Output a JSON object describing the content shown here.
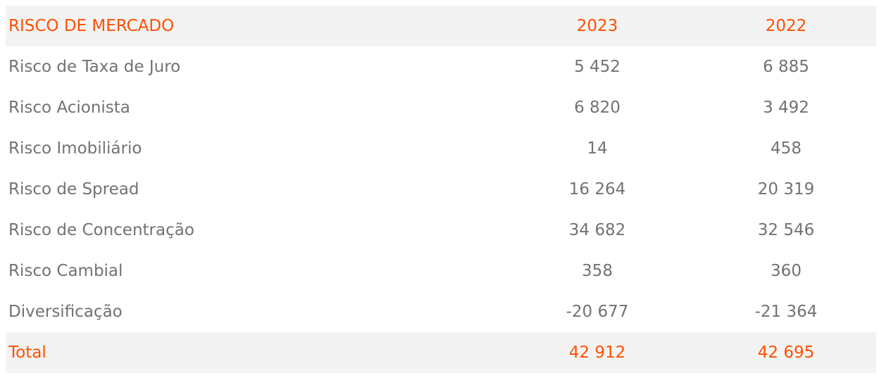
{
  "table": {
    "header": {
      "label": "RISCO DE MERCADO",
      "col1": "2023",
      "col2": "2022"
    },
    "rows": [
      {
        "label": "Risco de Taxa de Juro",
        "v2023": "5 452",
        "v2022": "6 885"
      },
      {
        "label": "Risco Acionista",
        "v2023": "6 820",
        "v2022": "3 492"
      },
      {
        "label": "Risco Imobiliário",
        "v2023": "14",
        "v2022": "458"
      },
      {
        "label": "Risco de Spread",
        "v2023": "16 264",
        "v2022": "20 319"
      },
      {
        "label": "Risco de Concentração",
        "v2023": "34 682",
        "v2022": "32 546"
      },
      {
        "label": "Risco Cambial",
        "v2023": "358",
        "v2022": "360"
      },
      {
        "label": "Diversificação",
        "v2023": "-20 677",
        "v2022": "-21 364"
      }
    ],
    "total": {
      "label": "Total",
      "v2023": "42 912",
      "v2022": "42 695"
    }
  },
  "colors": {
    "accent": "#ff5000",
    "text": "#727272",
    "band": "#f3f3f3"
  }
}
